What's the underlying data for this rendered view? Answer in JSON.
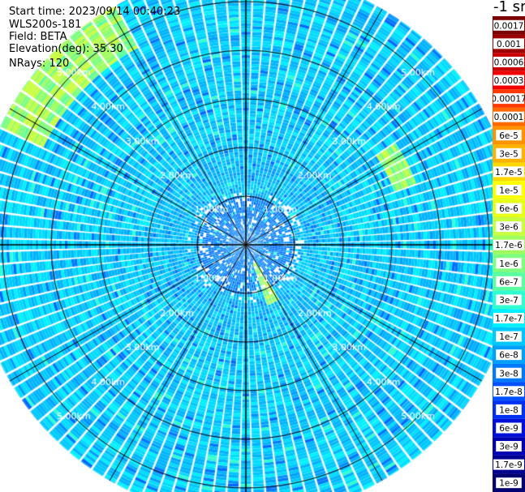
{
  "header": {
    "start_time": "Start time: 2023/09/14 00:40:23",
    "instrument": "WLS200s-181",
    "field": "Field: BETA",
    "elevation": "Elevation(deg): 35.30",
    "nrays": "NRays: 120"
  },
  "colorbar": {
    "unit_label": "-1 sr",
    "labels": [
      "0.0017",
      "0.001",
      "0.0006",
      "0.0003",
      "0.00017",
      "0.0001",
      "6e-5",
      "3e-5",
      "1.7e-5",
      "1e-5",
      "6e-6",
      "3e-6",
      "1.7e-6",
      "1e-6",
      "6e-7",
      "3e-7",
      "1.7e-7",
      "1e-7",
      "6e-8",
      "3e-8",
      "1.7e-8",
      "1e-8",
      "6e-9",
      "3e-9",
      "1.7e-9",
      "1e-9"
    ],
    "colors": [
      "#7a0000",
      "#9c0000",
      "#c80000",
      "#f00000",
      "#ff3a00",
      "#ff6a00",
      "#ff9200",
      "#ffb200",
      "#ffd800",
      "#ffff00",
      "#e8ff1a",
      "#c8ff40",
      "#a0ff60",
      "#7dff80",
      "#5cffa0",
      "#30ffd0",
      "#00f0ff",
      "#00c8ff",
      "#00a0ff",
      "#0078ff",
      "#0050ff",
      "#0030f0",
      "#0010d8",
      "#0000b0",
      "#000090",
      "#000070"
    ]
  },
  "chart_data": {
    "type": "heatmap",
    "projection": "polar-ppi",
    "field": "BETA",
    "nrays": 120,
    "range_rings_km": [
      1,
      2,
      3,
      4,
      5
    ],
    "ring_labels": [
      "1.00km",
      "2.00km",
      "3.00km",
      "4.00km",
      "5.00km"
    ],
    "max_range_km": 5.6,
    "color_scale": "log",
    "color_range": [
      1e-09,
      0.0017
    ],
    "typical_value": "3e-8",
    "near_range_value": "1.7e-8",
    "enhanced_arcs": [
      {
        "azimuth_deg": [
          295,
          330
        ],
        "range_km": [
          4.6,
          5.6
        ],
        "value": "1.7e-6"
      },
      {
        "azimuth_deg": [
          55,
          70
        ],
        "range_km": [
          3.2,
          3.7
        ],
        "value": "6e-7"
      },
      {
        "azimuth_deg": [
          150,
          160
        ],
        "range_km": [
          0.4,
          1.3
        ],
        "value": "6e-7"
      }
    ]
  }
}
